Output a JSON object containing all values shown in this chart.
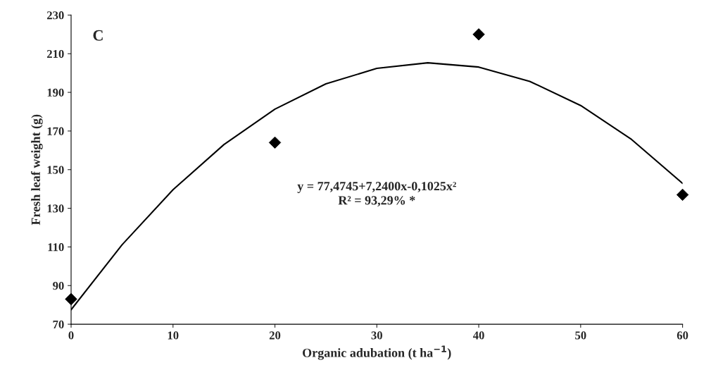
{
  "chart_data": {
    "type": "scatter",
    "xlabel": "Organic adubation (t ha$^{−1}$)",
    "ylabel": "Fresh leaf weight (g)",
    "x": [
      0,
      20,
      40,
      60
    ],
    "series": [
      {
        "color": "#000000",
        "marker": "diamond",
        "values": [
          83,
          164,
          220,
          137
        ]
      },
      {
        "type": "line",
        "color": "#000000",
        "marker": "none",
        "line_style": "solid",
        "x": [
          0,
          5,
          10,
          15,
          20,
          25,
          30,
          35,
          40,
          45,
          50,
          55,
          60
        ],
        "values": [
          77.5,
          111.1,
          139.6,
          163.0,
          181.3,
          194.4,
          202.4,
          205.3,
          203.1,
          195.7,
          183.2,
          165.6,
          142.9
        ]
      }
    ],
    "annotations": [
      {
        "text": "C"
      },
      {
        "text": "y = 77,4745+7,2400x-0,1025x²\nR² = 93,29% *"
      }
    ],
    "xlim": [
      0,
      60
    ],
    "xticks": [
      0,
      10,
      20,
      30,
      40,
      50,
      60
    ],
    "ylim": [
      70,
      230
    ],
    "yticks": [
      70,
      90,
      110,
      130,
      150,
      170,
      190,
      210,
      230
    ],
    "grid": false,
    "legend": false
  }
}
